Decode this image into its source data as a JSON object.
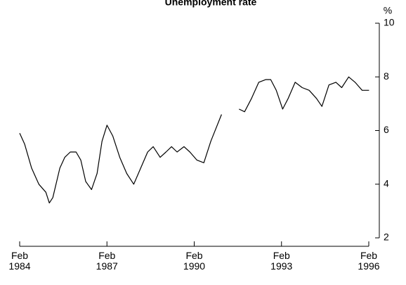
{
  "chart_data": {
    "type": "line",
    "title": "Unemployment rate",
    "y_unit": "%",
    "color": "#000000",
    "x": [
      1984.08,
      1984.25,
      1984.49,
      1984.74,
      1984.98,
      1985.1,
      1985.22,
      1985.46,
      1985.63,
      1985.82,
      1986.02,
      1986.18,
      1986.35,
      1986.55,
      1986.74,
      1986.91,
      1987.08,
      1987.28,
      1987.52,
      1987.76,
      1988.0,
      1988.24,
      1988.48,
      1988.67,
      1988.91,
      1989.11,
      1989.3,
      1989.49,
      1989.73,
      1989.93,
      1990.17,
      1990.41,
      1990.65,
      1991.02,
      1991.3,
      1991.62,
      1991.81,
      1992.05,
      1992.3,
      1992.54,
      1992.71,
      1992.9,
      1993.12,
      1993.31,
      1993.55,
      1993.79,
      1994.03,
      1994.28,
      1994.47,
      1994.71,
      1994.95,
      1995.15,
      1995.39,
      1995.61,
      1995.85,
      1996.09
    ],
    "values": [
      5.9,
      5.5,
      4.6,
      4.0,
      3.7,
      3.3,
      3.5,
      4.6,
      5.0,
      5.2,
      5.2,
      4.9,
      4.1,
      3.8,
      4.4,
      5.6,
      6.2,
      5.8,
      5.0,
      4.4,
      4.0,
      4.6,
      5.2,
      5.4,
      5.0,
      5.2,
      5.4,
      5.2,
      5.4,
      5.2,
      4.9,
      4.8,
      5.6,
      6.6,
      null,
      6.8,
      6.7,
      7.2,
      7.8,
      7.9,
      7.9,
      7.5,
      6.8,
      7.2,
      7.8,
      7.6,
      7.5,
      7.2,
      6.9,
      7.7,
      7.8,
      7.6,
      8.0,
      7.8,
      7.5,
      7.5
    ],
    "xlim": [
      1984.08,
      1996.08
    ],
    "xticks": [
      {
        "value": 1984.08,
        "label": "Feb 1984"
      },
      {
        "value": 1987.08,
        "label": "Feb 1987"
      },
      {
        "value": 1990.08,
        "label": "Feb 1990"
      },
      {
        "value": 1993.08,
        "label": "Feb 1993"
      },
      {
        "value": 1996.08,
        "label": "Feb 1996"
      }
    ],
    "ylim": [
      2,
      10
    ],
    "yticks": [
      2,
      4,
      6,
      8,
      10
    ],
    "y_axis_side": "right",
    "grid": false
  }
}
